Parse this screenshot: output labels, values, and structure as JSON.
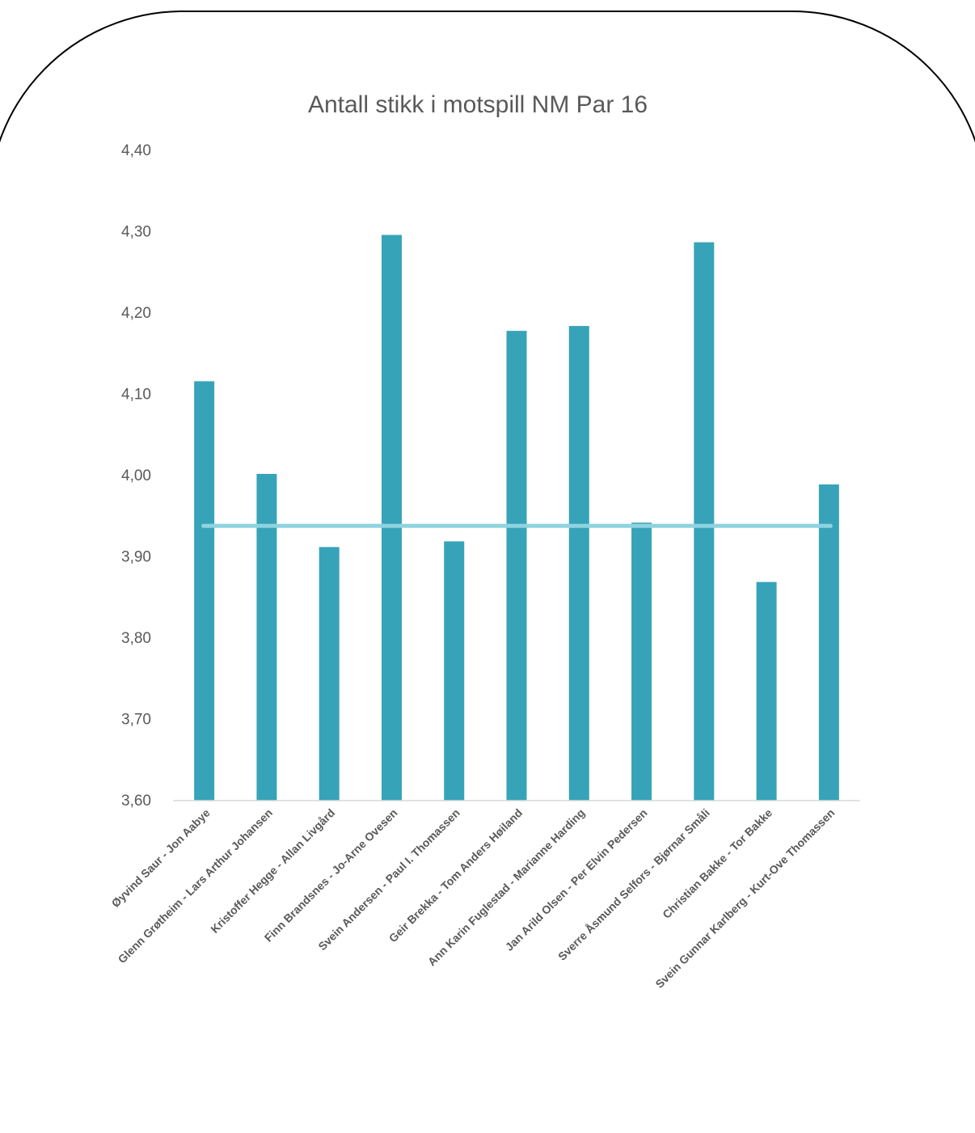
{
  "chart_data": {
    "type": "bar",
    "title": "Antall stikk i motspill NM Par 16",
    "xlabel": "",
    "ylabel": "",
    "ylim": [
      3.6,
      4.4
    ],
    "yticks": [
      "3,60",
      "3,70",
      "3,80",
      "3,90",
      "4,00",
      "4,10",
      "4,20",
      "4,30",
      "4,40"
    ],
    "categories": [
      "Øyvind Saur - Jon Aabye",
      "Glenn Grøtheim - Lars Arthur Johansen",
      "Kristoffer Hegge - Allan Livgård",
      "Finn Brandsnes - Jo-Arne Ovesen",
      "Svein Andersen - Paul I. Thomassen",
      "Geir Brekka - Tom Anders Høiland",
      "Ann Karin Fuglestad - Marianne Harding",
      "Jan Arild Olsen - Per Elvin Pedersen",
      "Sverre Åsmund Selfors - Bjørnar Småli",
      "Christian Bakke - Tor Bakke",
      "Svein Gunnar Karlberg - Kurt-Ove Thomassen"
    ],
    "values": [
      4.116,
      4.002,
      3.912,
      4.296,
      3.919,
      4.178,
      4.184,
      3.942,
      4.287,
      3.869,
      3.989
    ],
    "average_line": 3.938,
    "grid": false,
    "legend": "none",
    "colors": {
      "bar": "#37A3B8",
      "average_line": "#8FD3E0",
      "axis": "#D9D9D9",
      "text": "#595959",
      "frame": "#000000"
    }
  }
}
